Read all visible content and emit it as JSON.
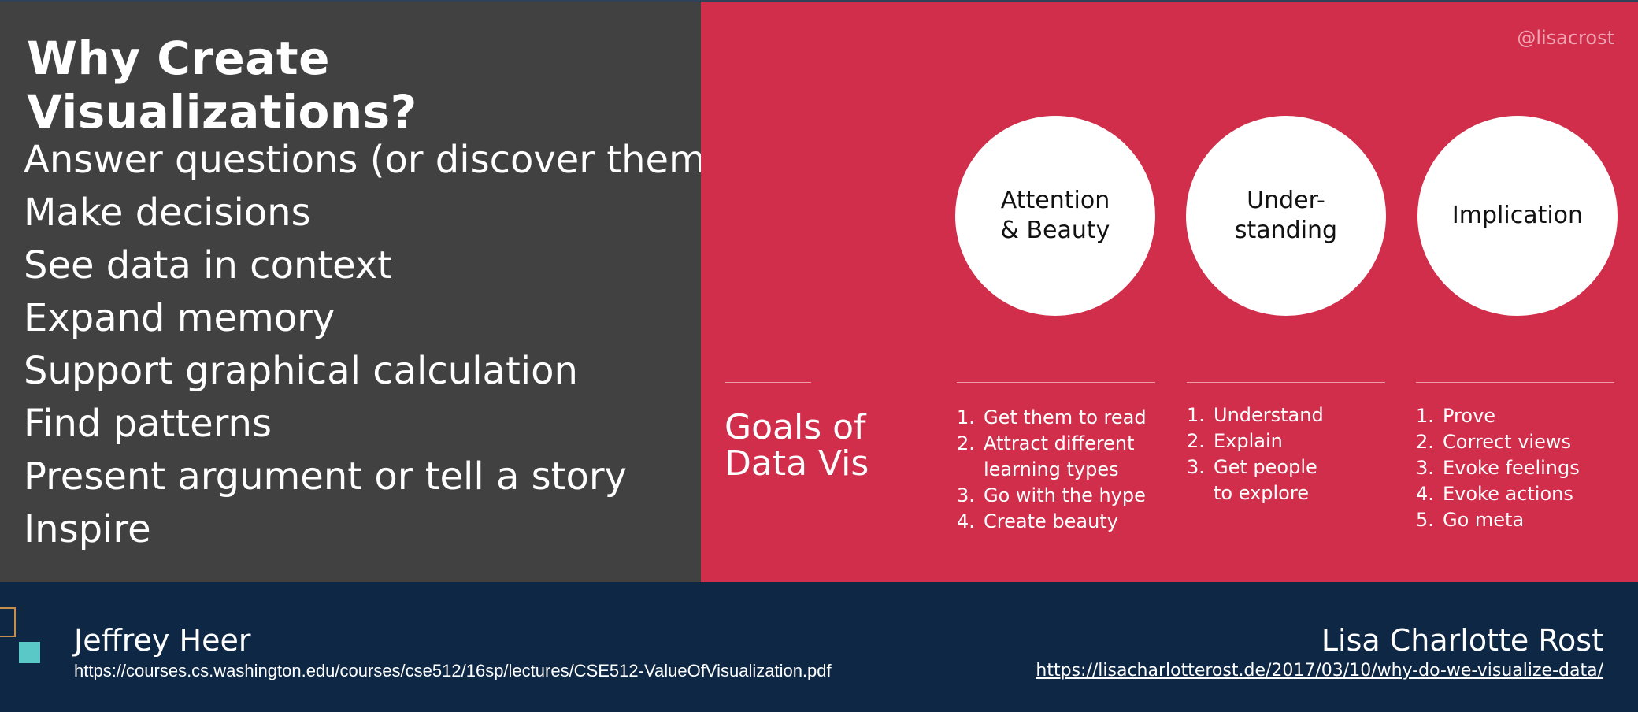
{
  "left": {
    "title": "Why Create Visualizations?",
    "reasons": [
      "Answer questions (or discover them)",
      "Make decisions",
      "See data in context",
      "Expand memory",
      "Support graphical calculation",
      "Find patterns",
      "Present argument or tell a story",
      "Inspire"
    ]
  },
  "right": {
    "handle": "@lisacrost",
    "goals_line1": "Goals of",
    "goals_line2": "Data Vis",
    "circles": [
      "Attention\n& Beauty",
      "Under-\nstanding",
      "Implication"
    ],
    "lists": [
      [
        "Get them to read",
        "Attract different\nlearning types",
        "Go with the hype",
        "Create beauty"
      ],
      [
        "Understand",
        "Explain",
        "Get people\nto explore"
      ],
      [
        "Prove",
        "Correct views",
        "Evoke feelings",
        "Evoke actions",
        "Go meta"
      ]
    ]
  },
  "footer": {
    "left_author": "Jeffrey Heer",
    "left_url": "https://courses.cs.washington.edu/courses/cse512/16sp/lectures/CSE512-ValueOfVisualization.pdf",
    "right_author": "Lisa Charlotte Rost",
    "right_url": "https://lisacharlotterost.de/2017/03/10/why-do-we-visualize-data/"
  },
  "colors": {
    "left_panel": "#414141",
    "right_panel": "#d12e4b",
    "footer": "#0e2744",
    "accent_square": "#5bc8c8"
  }
}
